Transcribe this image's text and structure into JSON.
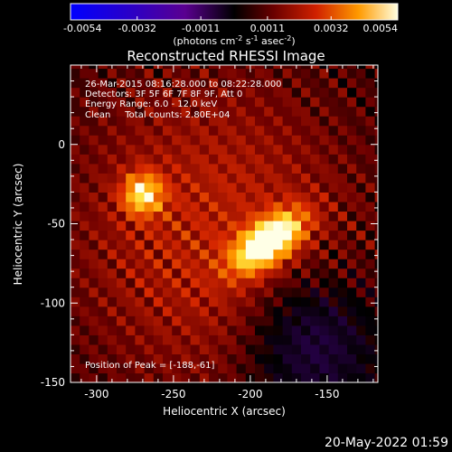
{
  "chart_data": {
    "type": "heatmap",
    "title": "Reconstructed RHESSI Image",
    "xlabel": "Heliocentric X (arcsec)",
    "ylabel": "Heliocentric Y (arcsec)",
    "xlim": [
      -317,
      -117
    ],
    "ylim": [
      -150,
      50
    ],
    "xticks": [
      -300,
      -250,
      -200,
      -150
    ],
    "yticks": [
      0,
      -50,
      -100,
      -150
    ],
    "colorbar": {
      "range": [
        -0.0054,
        0.0054
      ],
      "ticks": [
        "-0.0054",
        "-0.0032",
        "-0.0011",
        "0.0011",
        "0.0032",
        "0.0054"
      ],
      "label": "(photons cm-2 s-1 asec-2)",
      "label_parts": [
        "(photons cm",
        "-2",
        " s",
        "-1",
        " asec",
        "-2",
        ")"
      ]
    },
    "annotations": [
      "26-Mar-2015 08:16:28.000 to 08:22:28.000",
      "Detectors: 3F 5F 6F 7F 8F 9F, Att 0",
      "Energy Range: 6.0 - 12.0 keV",
      "Clean     Total counts: 2.80E+04"
    ],
    "peak_label": "Position of Peak = [-188,-61]",
    "peak": [
      -188,
      -61
    ],
    "sources": [
      {
        "x": -188,
        "y": -61,
        "amplitude": 0.0054
      },
      {
        "x": -270,
        "y": -31,
        "amplitude": 0.0037
      }
    ],
    "colormap": "hot (RHESSI)"
  },
  "footer": {
    "date": "20-May-2022 01:59"
  }
}
